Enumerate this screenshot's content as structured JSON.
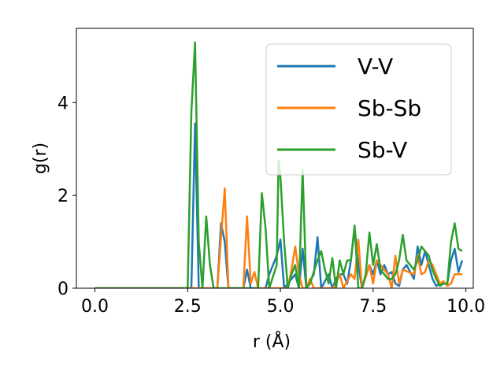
{
  "chart_data": {
    "type": "line",
    "title": "",
    "xlabel": "r (Å)",
    "ylabel": "g(r)",
    "xlim": [
      -0.5,
      10.2
    ],
    "ylim": [
      0,
      5.6
    ],
    "xticks": [
      0.0,
      2.5,
      5.0,
      7.5,
      10.0
    ],
    "xtick_labels": [
      "0.0",
      "2.5",
      "5.0",
      "7.5",
      "10.0"
    ],
    "yticks": [
      0,
      2,
      4
    ],
    "ytick_labels": [
      "0",
      "2",
      "4"
    ],
    "grid": false,
    "legend_position": "top-right",
    "series": [
      {
        "name": "V-V",
        "color": "#1f77b4",
        "points": [
          [
            0.0,
            0
          ],
          [
            2.5,
            0
          ],
          [
            2.6,
            0
          ],
          [
            2.7,
            3.55
          ],
          [
            2.8,
            0
          ],
          [
            3.0,
            0
          ],
          [
            3.3,
            0
          ],
          [
            3.4,
            1.4
          ],
          [
            3.5,
            1.0
          ],
          [
            3.6,
            0
          ],
          [
            4.0,
            0
          ],
          [
            4.1,
            0.4
          ],
          [
            4.2,
            0
          ],
          [
            4.6,
            0
          ],
          [
            4.7,
            0.3
          ],
          [
            4.9,
            0.7
          ],
          [
            5.0,
            1.05
          ],
          [
            5.1,
            0
          ],
          [
            5.4,
            0.3
          ],
          [
            5.5,
            0
          ],
          [
            5.6,
            0.85
          ],
          [
            5.7,
            0
          ],
          [
            5.9,
            0.3
          ],
          [
            6.0,
            1.1
          ],
          [
            6.1,
            0
          ],
          [
            6.3,
            0.3
          ],
          [
            6.4,
            0
          ],
          [
            6.5,
            0.2
          ],
          [
            6.6,
            0.3
          ],
          [
            6.7,
            0.3
          ],
          [
            6.8,
            0.1
          ],
          [
            6.9,
            0.6
          ],
          [
            7.0,
            1.3
          ],
          [
            7.1,
            0.5
          ],
          [
            7.2,
            0
          ],
          [
            7.4,
            0.5
          ],
          [
            7.5,
            0.3
          ],
          [
            7.6,
            0.6
          ],
          [
            7.7,
            0.3
          ],
          [
            7.8,
            0.5
          ],
          [
            7.9,
            0.3
          ],
          [
            8.0,
            0.35
          ],
          [
            8.1,
            0.1
          ],
          [
            8.2,
            0.05
          ],
          [
            8.3,
            0.4
          ],
          [
            8.4,
            0.5
          ],
          [
            8.5,
            0.35
          ],
          [
            8.6,
            0.2
          ],
          [
            8.7,
            0.9
          ],
          [
            8.8,
            0.5
          ],
          [
            8.9,
            0.8
          ],
          [
            9.0,
            0.5
          ],
          [
            9.1,
            0.2
          ],
          [
            9.2,
            0.05
          ],
          [
            9.3,
            0.1
          ],
          [
            9.5,
            0.1
          ],
          [
            9.6,
            0.6
          ],
          [
            9.7,
            0.85
          ],
          [
            9.8,
            0.35
          ],
          [
            9.9,
            0.6
          ]
        ]
      },
      {
        "name": "Sb-Sb",
        "color": "#ff7f0e",
        "points": [
          [
            0.0,
            0
          ],
          [
            3.3,
            0
          ],
          [
            3.4,
            1.1
          ],
          [
            3.5,
            2.15
          ],
          [
            3.6,
            0
          ],
          [
            4.0,
            0
          ],
          [
            4.1,
            1.55
          ],
          [
            4.2,
            0.1
          ],
          [
            4.3,
            0.35
          ],
          [
            4.4,
            0
          ],
          [
            5.2,
            0
          ],
          [
            5.3,
            0.4
          ],
          [
            5.4,
            0.9
          ],
          [
            5.5,
            0.3
          ],
          [
            5.6,
            0
          ],
          [
            5.7,
            0
          ],
          [
            5.8,
            0.2
          ],
          [
            5.9,
            0
          ],
          [
            6.4,
            0
          ],
          [
            6.5,
            0.1
          ],
          [
            6.6,
            0.3
          ],
          [
            6.7,
            0
          ],
          [
            6.9,
            0.3
          ],
          [
            7.0,
            0.2
          ],
          [
            7.1,
            1.05
          ],
          [
            7.2,
            0
          ],
          [
            7.4,
            0.5
          ],
          [
            7.5,
            0.1
          ],
          [
            7.6,
            0.6
          ],
          [
            7.7,
            0.5
          ],
          [
            7.9,
            0.3
          ],
          [
            8.0,
            0
          ],
          [
            8.1,
            0.7
          ],
          [
            8.2,
            0.1
          ],
          [
            8.3,
            0.4
          ],
          [
            8.6,
            0.3
          ],
          [
            8.7,
            0.7
          ],
          [
            8.8,
            0.3
          ],
          [
            8.9,
            0.35
          ],
          [
            9.0,
            0.6
          ],
          [
            9.1,
            0.5
          ],
          [
            9.2,
            0.3
          ],
          [
            9.3,
            0.1
          ],
          [
            9.4,
            0.15
          ],
          [
            9.5,
            0.05
          ],
          [
            9.6,
            0.1
          ],
          [
            9.7,
            0.3
          ],
          [
            9.9,
            0.3
          ]
        ]
      },
      {
        "name": "Sb-V",
        "color": "#2ca02c",
        "points": [
          [
            0.0,
            0
          ],
          [
            2.5,
            0
          ],
          [
            2.6,
            3.8
          ],
          [
            2.7,
            5.3
          ],
          [
            2.8,
            1.0
          ],
          [
            2.9,
            0
          ],
          [
            3.0,
            1.55
          ],
          [
            3.1,
            0.5
          ],
          [
            3.2,
            0
          ],
          [
            4.3,
            0
          ],
          [
            4.4,
            0
          ],
          [
            4.5,
            2.05
          ],
          [
            4.6,
            1.3
          ],
          [
            4.7,
            0
          ],
          [
            4.9,
            0.5
          ],
          [
            4.95,
            2.75
          ],
          [
            5.0,
            2.4
          ],
          [
            5.1,
            1.0
          ],
          [
            5.2,
            0
          ],
          [
            5.3,
            0.3
          ],
          [
            5.4,
            0.5
          ],
          [
            5.5,
            0
          ],
          [
            5.6,
            2.55
          ],
          [
            5.7,
            0
          ],
          [
            5.8,
            0.1
          ],
          [
            6.0,
            0.6
          ],
          [
            6.1,
            0.8
          ],
          [
            6.2,
            0.4
          ],
          [
            6.3,
            0.1
          ],
          [
            6.4,
            0.65
          ],
          [
            6.5,
            0
          ],
          [
            6.6,
            0.6
          ],
          [
            6.7,
            0.3
          ],
          [
            6.8,
            0.6
          ],
          [
            6.9,
            0.6
          ],
          [
            7.0,
            1.35
          ],
          [
            7.1,
            0
          ],
          [
            7.2,
            0
          ],
          [
            7.3,
            0.3
          ],
          [
            7.4,
            1.2
          ],
          [
            7.5,
            0.5
          ],
          [
            7.6,
            0.95
          ],
          [
            7.7,
            0.4
          ],
          [
            7.8,
            0.3
          ],
          [
            7.9,
            0.2
          ],
          [
            8.0,
            0.2
          ],
          [
            8.1,
            0.3
          ],
          [
            8.2,
            0.6
          ],
          [
            8.3,
            1.15
          ],
          [
            8.4,
            0.6
          ],
          [
            8.5,
            0.5
          ],
          [
            8.6,
            0.4
          ],
          [
            8.7,
            0.6
          ],
          [
            8.8,
            0.9
          ],
          [
            8.9,
            0.8
          ],
          [
            9.0,
            0.7
          ],
          [
            9.1,
            0.4
          ],
          [
            9.2,
            0.2
          ],
          [
            9.3,
            0.05
          ],
          [
            9.4,
            0.1
          ],
          [
            9.5,
            0.1
          ],
          [
            9.6,
            1.0
          ],
          [
            9.7,
            1.4
          ],
          [
            9.8,
            0.85
          ],
          [
            9.9,
            0.8
          ]
        ]
      }
    ]
  }
}
